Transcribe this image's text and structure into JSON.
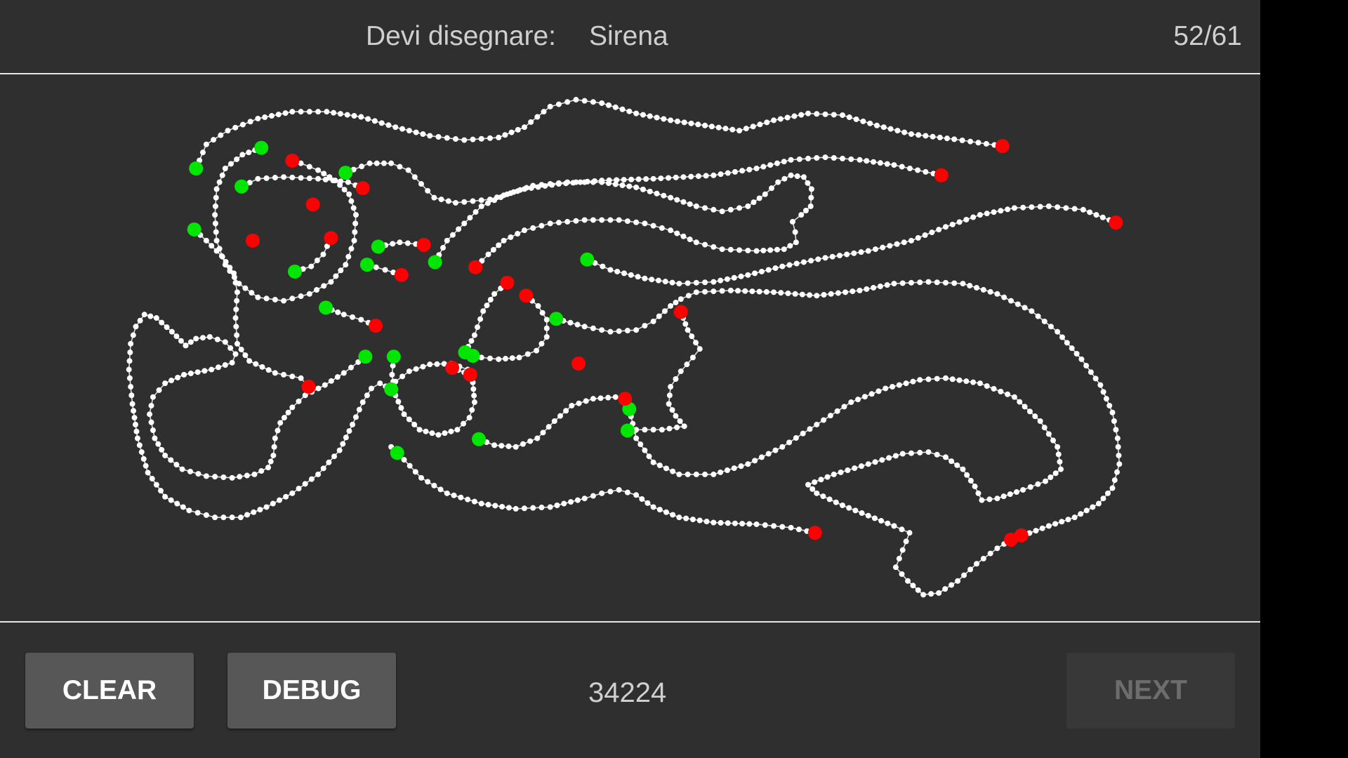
{
  "header": {
    "prompt_label": "Devi disegnare:",
    "prompt_word": "Sirena",
    "counter": "52/61"
  },
  "footer": {
    "clear_label": "CLEAR",
    "debug_label": "DEBUG",
    "score": "34224",
    "next_label": "NEXT"
  },
  "colors": {
    "background": "#2f2f2f",
    "stroke": "#ffffff",
    "stroke_start": "#00e600",
    "stroke_end": "#ff0000"
  }
}
